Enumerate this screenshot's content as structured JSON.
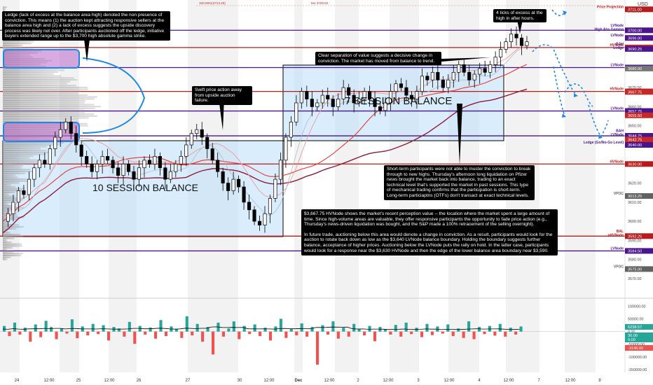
{
  "chart_data": {
    "type": "candlestick",
    "currency": "USD",
    "y_axis": {
      "min": 3560,
      "max": 3712,
      "ticks": [
        3710,
        3700,
        3690,
        3680,
        3670,
        3660,
        3650,
        3640,
        3630,
        3620,
        3610,
        3600,
        3590,
        3580,
        3570
      ]
    },
    "x_axis": {
      "ticks": [
        "24",
        "12:00",
        "25",
        "12:00",
        "26",
        "27",
        "30",
        "12:00",
        "Dec",
        "12:00",
        "2",
        "12:00",
        "3",
        "12:00",
        "4",
        "12:00",
        "7",
        "12:00",
        "8"
      ]
    },
    "top_labels": [
      "100.00%(3713.25)",
      "Mo 3708.50"
    ],
    "levels": [
      {
        "label": "Price Projection",
        "value": "3711.00",
        "color": "#b71c1c",
        "kind": "marker"
      },
      {
        "label": "LVNode\nHigh Abs Gamma",
        "value": "3700.00",
        "color": "#4a148c",
        "kind": "line"
      },
      {
        "label": "LVNode",
        "value": "3696.00",
        "color": "#4a148c",
        "kind": "marker"
      },
      {
        "label": "HVNode",
        "value": "3691.00",
        "color": "#b71c1c",
        "kind": "line"
      },
      {
        "label": "",
        "value": "3690.75",
        "color": "#c62828",
        "kind": "marker"
      },
      {
        "label": "BAH\nLedge",
        "value": "3690.25",
        "color": "#4a148c",
        "kind": "marker"
      },
      {
        "label": "LVNode",
        "value": "3680.50",
        "color": "#4a148c",
        "kind": "line"
      },
      {
        "label": "",
        "value": "3680.00",
        "color": "#757575",
        "kind": "marker"
      },
      {
        "label": "HVNode",
        "value": "3668.00",
        "color": "#b71c1c",
        "kind": "line"
      },
      {
        "label": "",
        "value": "3667.75",
        "color": "#c62828",
        "kind": "marker"
      },
      {
        "label": "LVNode",
        "value": "3657.75",
        "color": "#4a148c",
        "kind": "line"
      },
      {
        "label": "",
        "value": "3655.50",
        "color": "#c62828",
        "kind": "marker"
      },
      {
        "label": "BAH\nLVNode",
        "value": "3644.75",
        "color": "#4a148c",
        "kind": "line"
      },
      {
        "label": "",
        "value": "3642.75",
        "color": "#c62828",
        "kind": "marker"
      },
      {
        "label": "Ledge (Go/No-Go Level)",
        "value": "3640.00",
        "color": "#4a148c",
        "kind": "marker"
      },
      {
        "label": "HVNode",
        "value": "3630.00",
        "color": "#b71c1c",
        "kind": "line"
      },
      {
        "label": "VPOC",
        "value": "3613.25",
        "color": "#616161",
        "kind": "marker"
      },
      {
        "label": "BAL\npHVNode",
        "value": "3592.25",
        "color": "#b71c1c",
        "kind": "line"
      },
      {
        "label": "LVNode",
        "value": "3584.50",
        "color": "#4a148c",
        "kind": "line"
      },
      {
        "label": "VPOC",
        "value": "3575.00",
        "color": "#616161",
        "kind": "marker"
      }
    ],
    "balance_areas": [
      {
        "label": "10 SESSION BALANCE",
        "high": 3644.75,
        "low": 3592.25
      },
      {
        "label": "7 SESSION BALANCE",
        "high": 3680.5,
        "low": 3644.75
      }
    ],
    "price_series": [
      3600,
      3604,
      3610,
      3616,
      3614,
      3622,
      3628,
      3632,
      3630,
      3638,
      3644,
      3648,
      3652,
      3646,
      3640,
      3634,
      3630,
      3626,
      3630,
      3634,
      3632,
      3628,
      3624,
      3630,
      3626,
      3622,
      3628,
      3632,
      3630,
      3634,
      3628,
      3622,
      3626,
      3630,
      3634,
      3640,
      3646,
      3648,
      3644,
      3638,
      3632,
      3626,
      3620,
      3616,
      3622,
      3618,
      3610,
      3606,
      3600,
      3598,
      3604,
      3612,
      3622,
      3632,
      3644,
      3652,
      3662,
      3668,
      3664,
      3660,
      3662,
      3666,
      3664,
      3660,
      3664,
      3670,
      3666,
      3662,
      3664,
      3668,
      3664,
      3660,
      3658,
      3662,
      3668,
      3672,
      3670,
      3666,
      3664,
      3668,
      3676,
      3674,
      3678,
      3674,
      3670,
      3674,
      3678,
      3682,
      3678,
      3674,
      3677,
      3680,
      3678,
      3682,
      3686,
      3690,
      3694,
      3698,
      3696,
      3692,
      3694
    ],
    "indicator": {
      "ticks": [
        "100000.00",
        "50000.00",
        "0.00",
        "-50000.00",
        "-100000.00",
        "-150000.00"
      ],
      "y_min": -155000,
      "y_max": 120000,
      "last_values": [
        {
          "value": "6238.57",
          "color": "#26a69a"
        },
        {
          "value": "30.00",
          "color": "#26a69a"
        },
        {
          "value": "0.00",
          "color": "#26a69a"
        },
        {
          "value": "-3146.00",
          "color": "#ef5350"
        }
      ],
      "bars": [
        22000,
        -18000,
        35000,
        -12000,
        15000,
        -40000,
        28000,
        -22000,
        42000,
        18000,
        -30000,
        12000,
        -8000,
        48000,
        -26000,
        20000,
        -15000,
        30000,
        -10000,
        25000,
        -35000,
        18000,
        12000,
        -20000,
        38000,
        -48000,
        22000,
        -12000,
        16000,
        -28000,
        45000,
        -18000,
        20000,
        10000,
        -25000,
        60000,
        -15000,
        30000,
        -40000,
        18000,
        -90000,
        35000,
        -20000,
        12000,
        40000,
        -30000,
        22000,
        -10000,
        28000,
        -18000,
        15000,
        -35000,
        20000,
        50000,
        -25000,
        10000,
        -15000,
        32000,
        -20000,
        18000,
        -130000,
        25000,
        -12000,
        40000,
        -28000,
        15000,
        -20000,
        30000,
        10000,
        -15000,
        22000,
        -38000,
        18000,
        8000,
        -12000,
        26000,
        -20000,
        35000,
        -10000,
        15000,
        -22000,
        30000,
        -14000,
        20000,
        -8000,
        28000,
        -18000,
        12000,
        -25000,
        40000,
        -30000,
        18000,
        -10000,
        22000,
        -16000,
        30000,
        -20000,
        15000,
        -12000,
        20000
      ]
    }
  },
  "annotations": {
    "ledge": "Ledge (lack of excess at the balance area high) denoted the non presence of conviction. This means (1) the auction kept attracting responsive sellers at the balance area high and (2) a lack of excess suggests the upside discovery process was likely not over. After participants auctioned off the ledge, initiative buyers extended range up to the $3,700 high absolute gamma strike.",
    "excess": "4 ticks of excess at the high in after hours.",
    "swift": "Swift price action away from upside auction failure.",
    "separation": "Clear separation of value suggests a decisive change in conviction. The market has moved from balance to trend.",
    "short_term": "Short-term participants were not able to muster the conviction to break through to new highs. Thursday's afternoon long liquidation on Pfizer news brought the market back into balance, trading to an exact technical level that's supported the market in past sessions. This type of mechanical trading confirms that the participation is short-term. Long-term particiaptns (OTFs) don't transact at exact technical levels.",
    "hvnode_p1": "$3,667.75 HVNode shows the market's recent perception value -- the location where the market spent a large amount of time. Since high-volume areas are valuable, they offer responsive participants the opportunity to fade price action (e.g., Thursday's news-driven liquidation was bought, and the S&P made a 100% retracement of the selling overnight).",
    "hvnode_p2": "In future trade, auctioning below this area would denote a change in conviction. As a result, participants would look for the auction to rotate back down as low as the $3,640 LVNode balance boundary. Holding the boundary suggests further balance, acceptance of higher prices. Auctioning below the LVNode puts the rally on hold. In the latter case, participants would look for a response near the $3,630 HVNode and then the edge of the lower balance area boundary near $3,590."
  }
}
